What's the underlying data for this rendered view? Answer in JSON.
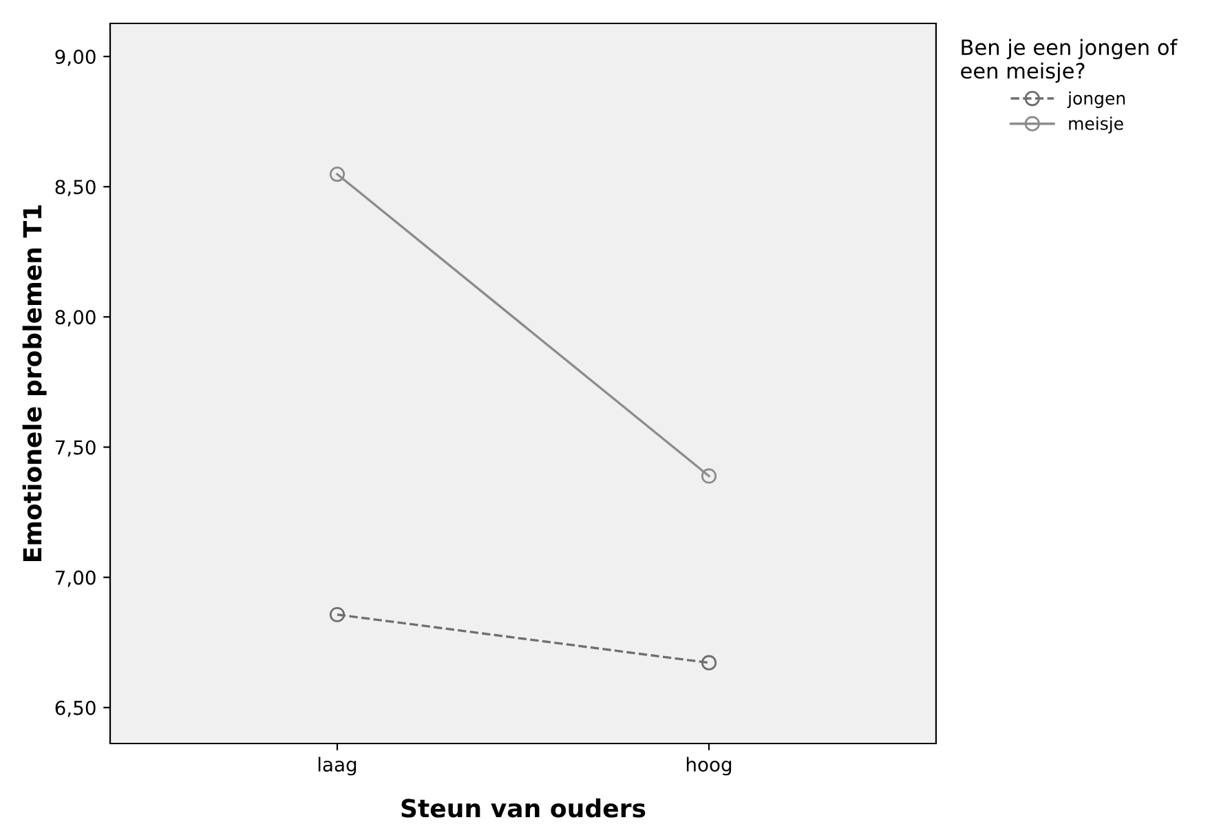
{
  "chart_data": {
    "type": "line",
    "xlabel": "Steun van ouders",
    "ylabel": "Emotionele problemen T1",
    "legend_title": "Ben je een jongen of\neen meisje?",
    "categories": [
      "laag",
      "hoog"
    ],
    "series": [
      {
        "name": "jongen",
        "color": "#6e6e6e",
        "values": [
          6.857,
          6.672
        ],
        "line_style": "dashed"
      },
      {
        "name": "meisje",
        "color": "#8c8c8c",
        "values": [
          8.548,
          7.389
        ],
        "line_style": "solid"
      }
    ],
    "ylim": [
      6.362,
      9.127
    ],
    "yticks": [
      {
        "value": 6.5,
        "label": "6,50"
      },
      {
        "value": 7.0,
        "label": "7,00"
      },
      {
        "value": 7.5,
        "label": "7,50"
      },
      {
        "value": 8.0,
        "label": "8,00"
      },
      {
        "value": 8.5,
        "label": "8,50"
      },
      {
        "value": 9.0,
        "label": "9,00"
      }
    ],
    "marker": "circle",
    "grid": false,
    "legend": "top right"
  }
}
